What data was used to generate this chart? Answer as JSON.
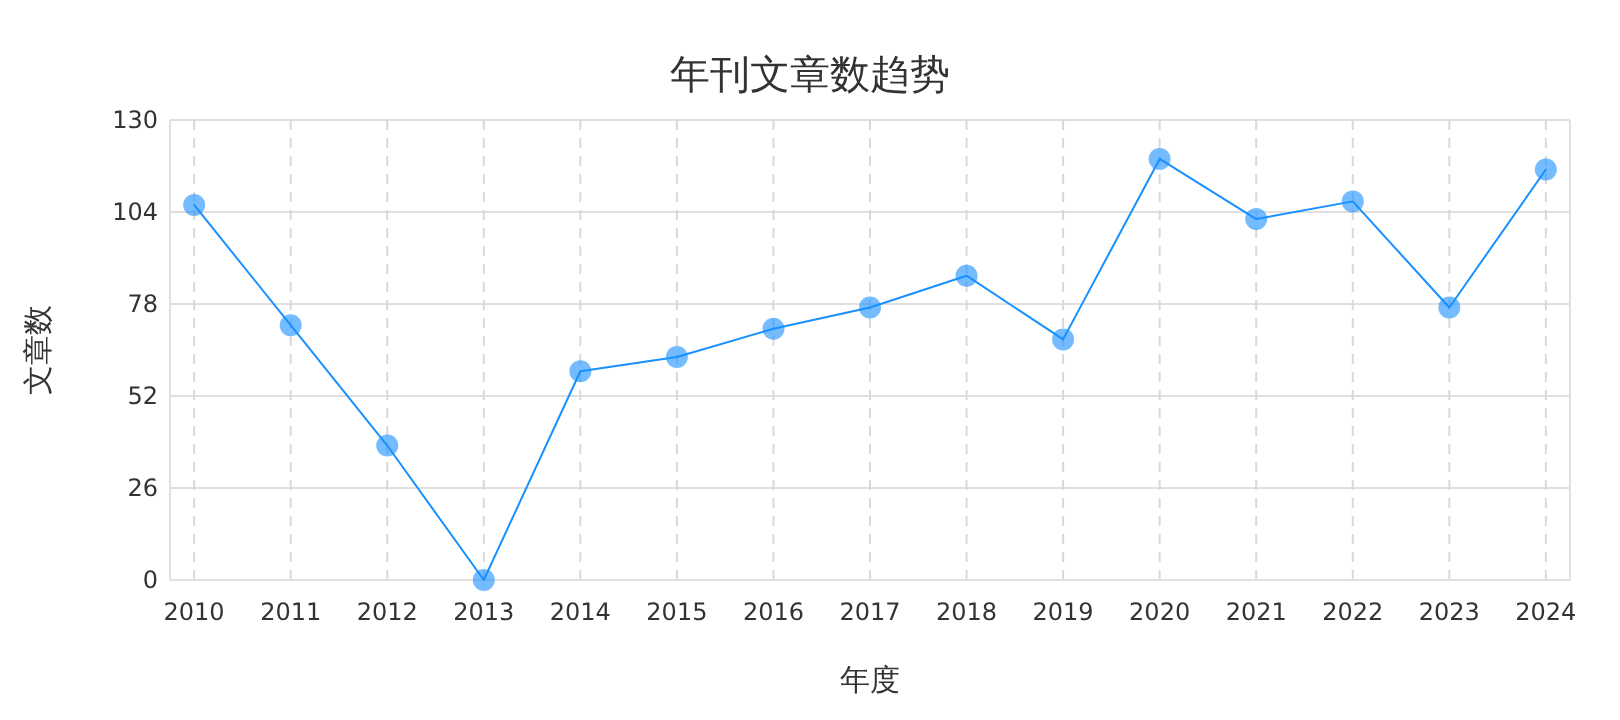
{
  "chart_data": {
    "type": "line",
    "title": "年刊文章数趋势",
    "xlabel": "年度",
    "ylabel": "文章数",
    "categories": [
      "2010",
      "2011",
      "2012",
      "2013",
      "2014",
      "2015",
      "2016",
      "2017",
      "2018",
      "2019",
      "2020",
      "2021",
      "2022",
      "2023",
      "2024"
    ],
    "series": [
      {
        "color": "#1890ff",
        "values": [
          106,
          72,
          38,
          0,
          59,
          63,
          71,
          77,
          86,
          68,
          119,
          102,
          107,
          77,
          116
        ]
      }
    ],
    "ylim": [
      0,
      130
    ],
    "yticks": [
      0,
      26,
      52,
      78,
      104,
      130
    ],
    "grid": true,
    "marker": "circle",
    "line_style": "solid"
  }
}
